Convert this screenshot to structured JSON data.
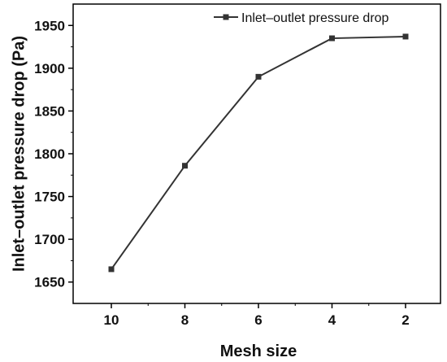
{
  "chart_data": {
    "type": "line",
    "title": "",
    "xlabel": "Mesh size",
    "ylabel": "Inlet–outlet pressure drop (Pa)",
    "categories": [
      "10",
      "8",
      "6",
      "4",
      "2"
    ],
    "ylim": [
      1625,
      1975
    ],
    "yticks": [
      1650,
      1700,
      1750,
      1800,
      1850,
      1900,
      1950
    ],
    "series": [
      {
        "name": "Inlet–outlet pressure drop",
        "values": [
          1665,
          1786,
          1890,
          1935,
          1937
        ],
        "marker": "square"
      }
    ],
    "legend": "top-right",
    "grid": false,
    "colors": {
      "line": "#333333",
      "marker": "#333333",
      "axes": "#000000",
      "background": "#ffffff"
    }
  }
}
